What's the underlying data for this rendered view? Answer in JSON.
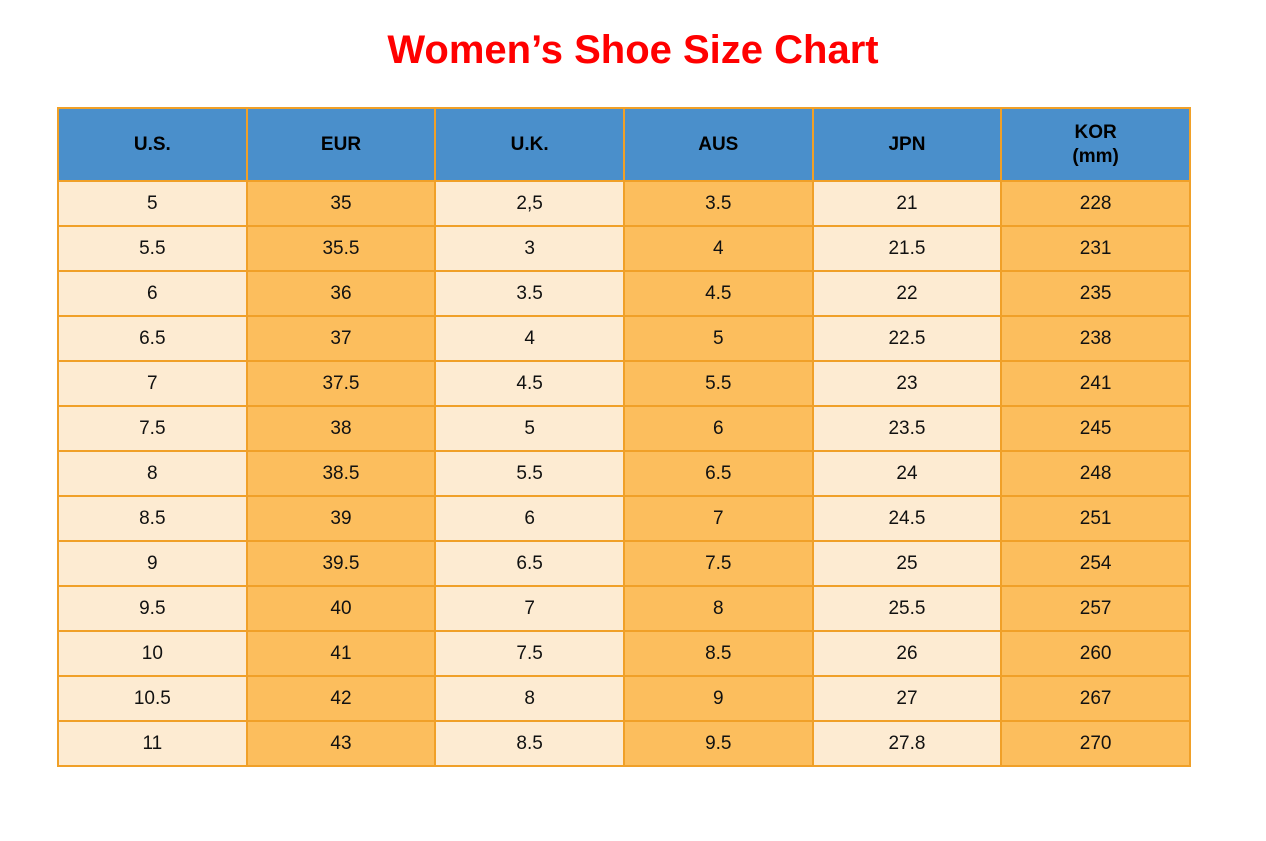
{
  "title": "Women’s Shoe Size Chart",
  "colors": {
    "title": "#FF0000",
    "header_bg": "#4A8FCB",
    "header_text": "#000000",
    "cell_light": "#FDEBD2",
    "cell_orange": "#FCBE5D",
    "border": "#F0A028",
    "cell_text": "#111111"
  },
  "chart_data": {
    "type": "table",
    "title": "Women’s Shoe Size Chart",
    "columns": [
      "U.S.",
      "EUR",
      "U.K.",
      "AUS",
      "JPN",
      "KOR (mm)"
    ],
    "header_lines": [
      [
        "U.S."
      ],
      [
        "EUR"
      ],
      [
        "U.K."
      ],
      [
        "AUS"
      ],
      [
        "JPN"
      ],
      [
        "KOR",
        "(mm)"
      ]
    ],
    "column_styles": [
      "light",
      "orange",
      "light",
      "orange",
      "light",
      "orange"
    ],
    "rows": [
      [
        "5",
        "35",
        "2,5",
        "3.5",
        "21",
        "228"
      ],
      [
        "5.5",
        "35.5",
        "3",
        "4",
        "21.5",
        "231"
      ],
      [
        "6",
        "36",
        "3.5",
        "4.5",
        "22",
        "235"
      ],
      [
        "6.5",
        "37",
        "4",
        "5",
        "22.5",
        "238"
      ],
      [
        "7",
        "37.5",
        "4.5",
        "5.5",
        "23",
        "241"
      ],
      [
        "7.5",
        "38",
        "5",
        "6",
        "23.5",
        "245"
      ],
      [
        "8",
        "38.5",
        "5.5",
        "6.5",
        "24",
        "248"
      ],
      [
        "8.5",
        "39",
        "6",
        "7",
        "24.5",
        "251"
      ],
      [
        "9",
        "39.5",
        "6.5",
        "7.5",
        "25",
        "254"
      ],
      [
        "9.5",
        "40",
        "7",
        "8",
        "25.5",
        "257"
      ],
      [
        "10",
        "41",
        "7.5",
        "8.5",
        "26",
        "260"
      ],
      [
        "10.5",
        "42",
        "8",
        "9",
        "27",
        "267"
      ],
      [
        "11",
        "43",
        "8.5",
        "9.5",
        "27.8",
        "270"
      ]
    ]
  }
}
